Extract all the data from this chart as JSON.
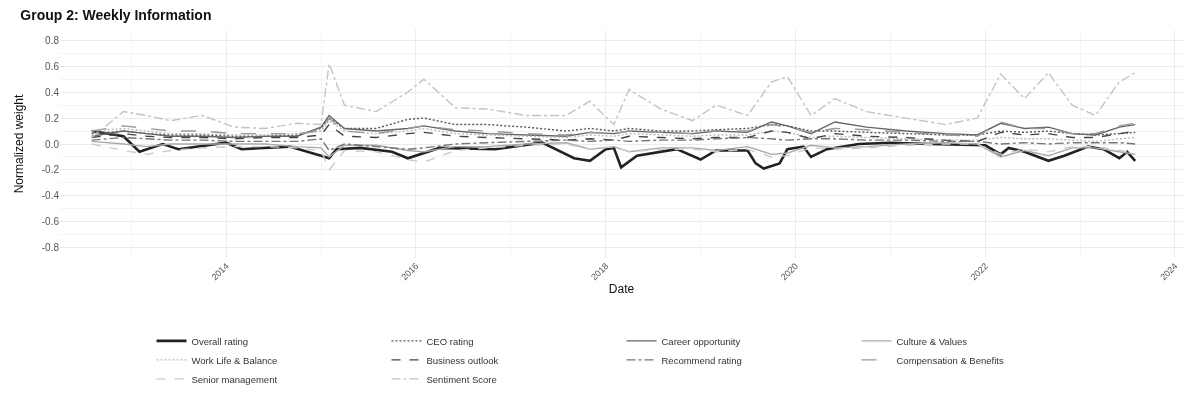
{
  "chart_data": {
    "type": "line",
    "title": "Group 2: Weekly Information",
    "xlabel": "Date",
    "ylabel": "Normalized weight",
    "x": [
      "2012-08",
      "2012-12",
      "2013-03",
      "2013-06",
      "2013-10",
      "2014-02",
      "2014-06",
      "2014-10",
      "2015-01",
      "2015-02",
      "2015-04",
      "2015-08",
      "2015-12",
      "2016-02",
      "2016-06",
      "2016-10",
      "2017-03",
      "2017-08",
      "2017-11",
      "2018-02",
      "2018-04",
      "2018-08",
      "2018-12",
      "2019-03",
      "2019-07",
      "2019-10",
      "2019-12",
      "2020-03",
      "2020-06",
      "2020-10",
      "2021-03",
      "2021-08",
      "2021-12",
      "2022-03",
      "2022-06",
      "2022-09",
      "2022-12",
      "2023-03",
      "2023-06",
      "2023-08"
    ],
    "series": [
      {
        "name": "Overall rating",
        "color": "#222222",
        "line_style": "solid",
        "x": [
          "2012-08",
          "2012-12",
          "2013-02",
          "2013-05",
          "2013-07",
          "2014-01",
          "2014-03",
          "2014-09",
          "2015-01",
          "2015-02",
          "2015-03",
          "2015-06",
          "2015-10",
          "2015-12",
          "2016-04",
          "2016-11",
          "2017-05",
          "2017-09",
          "2017-11",
          "2018-01",
          "2018-02",
          "2018-03",
          "2018-05",
          "2018-10",
          "2019-01",
          "2019-03",
          "2019-07",
          "2019-08",
          "2019-09",
          "2019-11",
          "2019-12",
          "2020-02",
          "2020-03",
          "2020-05",
          "2020-09",
          "2021-01",
          "2021-06",
          "2022-01",
          "2022-03",
          "2022-04",
          "2022-06",
          "2022-09",
          "2022-11",
          "2023-02",
          "2023-04",
          "2023-06",
          "2023-07",
          "2023-08"
        ],
        "values": [
          0.1,
          0.06,
          -0.06,
          0.0,
          -0.04,
          0.01,
          -0.04,
          -0.02,
          -0.09,
          -0.11,
          -0.04,
          -0.03,
          -0.06,
          -0.11,
          -0.03,
          -0.04,
          0.01,
          -0.11,
          -0.13,
          -0.04,
          -0.03,
          -0.18,
          -0.09,
          -0.04,
          -0.12,
          -0.05,
          -0.05,
          -0.15,
          -0.19,
          -0.15,
          -0.04,
          -0.02,
          -0.1,
          -0.04,
          0.0,
          0.01,
          0.0,
          -0.01,
          -0.08,
          -0.03,
          -0.06,
          -0.13,
          -0.09,
          -0.02,
          -0.04,
          -0.11,
          -0.06,
          -0.13
        ]
      },
      {
        "name": "CEO rating",
        "color": "#555555",
        "line_style": "dotted",
        "values": [
          0.08,
          0.1,
          0.08,
          0.07,
          0.07,
          0.06,
          0.06,
          0.07,
          0.12,
          0.2,
          0.12,
          0.12,
          0.19,
          0.2,
          0.15,
          0.15,
          0.13,
          0.1,
          0.12,
          0.1,
          0.12,
          0.1,
          0.1,
          0.11,
          0.12,
          0.15,
          0.14,
          0.1,
          0.1,
          0.09,
          0.08,
          0.07,
          0.07,
          0.1,
          0.09,
          0.1,
          0.08,
          0.07,
          0.08,
          0.09
        ]
      },
      {
        "name": "Career opportunity",
        "color": "#666666",
        "line_style": "solid",
        "values": [
          0.06,
          0.1,
          0.08,
          0.06,
          0.06,
          0.05,
          0.06,
          0.06,
          0.13,
          0.22,
          0.12,
          0.1,
          0.12,
          0.14,
          0.1,
          0.08,
          0.07,
          0.06,
          0.09,
          0.08,
          0.1,
          0.09,
          0.08,
          0.1,
          0.09,
          0.17,
          0.14,
          0.08,
          0.17,
          0.13,
          0.1,
          0.08,
          0.07,
          0.16,
          0.12,
          0.13,
          0.08,
          0.07,
          0.13,
          0.15
        ]
      },
      {
        "name": "Culture & Values",
        "color": "#aaaaaa",
        "line_style": "solid",
        "values": [
          0.02,
          0.0,
          -0.02,
          0.0,
          0.0,
          0.0,
          0.0,
          -0.02,
          -0.03,
          -0.1,
          -0.01,
          -0.01,
          -0.05,
          -0.06,
          -0.02,
          -0.02,
          0.0,
          0.01,
          -0.04,
          -0.02,
          -0.06,
          -0.03,
          -0.03,
          -0.05,
          -0.02,
          -0.08,
          -0.07,
          -0.01,
          -0.03,
          -0.02,
          0.0,
          0.01,
          0.0,
          -0.1,
          -0.05,
          -0.09,
          -0.03,
          -0.03,
          -0.06,
          -0.08
        ]
      },
      {
        "name": "Work Life & Balance",
        "color": "#bbbbbb",
        "line_style": "dotted",
        "values": [
          0.1,
          0.12,
          0.1,
          0.08,
          0.08,
          0.07,
          0.07,
          0.08,
          0.1,
          0.18,
          0.1,
          0.08,
          0.1,
          0.12,
          0.08,
          0.07,
          0.06,
          0.05,
          0.07,
          0.06,
          0.08,
          0.07,
          0.06,
          0.07,
          0.07,
          0.1,
          0.09,
          0.05,
          0.06,
          0.05,
          0.04,
          0.03,
          0.03,
          0.05,
          0.04,
          0.04,
          0.03,
          0.02,
          0.04,
          0.05
        ]
      },
      {
        "name": "Business outlook",
        "color": "#444444",
        "line_style": "dashed",
        "values": [
          0.05,
          0.08,
          0.06,
          0.05,
          0.05,
          0.04,
          0.05,
          0.05,
          0.07,
          0.15,
          0.06,
          0.05,
          0.08,
          0.09,
          0.06,
          0.05,
          0.04,
          0.03,
          0.04,
          0.03,
          0.06,
          0.05,
          0.04,
          0.05,
          0.05,
          0.1,
          0.09,
          0.04,
          0.08,
          0.06,
          0.05,
          0.03,
          0.02,
          0.09,
          0.07,
          0.08,
          0.05,
          0.05,
          0.08,
          0.1
        ]
      },
      {
        "name": "Recommend rating",
        "color": "#777777",
        "line_style": "dashdot",
        "values": [
          0.03,
          0.05,
          0.04,
          0.03,
          0.03,
          0.02,
          0.02,
          0.02,
          0.04,
          -0.05,
          0.0,
          -0.02,
          -0.04,
          -0.03,
          0.0,
          0.01,
          0.02,
          0.03,
          0.02,
          0.03,
          0.02,
          0.03,
          0.03,
          0.04,
          0.05,
          0.04,
          0.03,
          0.04,
          0.04,
          0.03,
          0.03,
          0.02,
          0.02,
          0.0,
          0.01,
          0.0,
          0.01,
          0.01,
          0.01,
          0.0
        ]
      },
      {
        "name": "Compensation & Benefits",
        "color": "#999999",
        "line_style": "longdash",
        "values": [
          0.1,
          0.14,
          0.12,
          0.1,
          0.1,
          0.08,
          0.08,
          0.08,
          0.1,
          0.2,
          0.1,
          0.08,
          0.12,
          0.14,
          0.11,
          0.1,
          0.08,
          0.07,
          0.09,
          0.08,
          0.1,
          0.09,
          0.08,
          0.1,
          0.1,
          0.15,
          0.13,
          0.09,
          0.12,
          0.11,
          0.09,
          0.07,
          0.06,
          0.17,
          0.12,
          0.12,
          0.08,
          0.08,
          0.14,
          0.16
        ]
      },
      {
        "name": "Senior management",
        "color": "#cccccc",
        "line_style": "dashed",
        "values": [
          0.0,
          -0.05,
          -0.08,
          -0.05,
          -0.03,
          -0.02,
          -0.02,
          -0.03,
          -0.05,
          -0.2,
          -0.05,
          -0.06,
          -0.12,
          -0.14,
          -0.05,
          -0.03,
          -0.01,
          0.0,
          -0.04,
          -0.02,
          -0.06,
          -0.04,
          -0.04,
          -0.06,
          -0.04,
          -0.1,
          -0.09,
          -0.03,
          -0.04,
          -0.03,
          -0.01,
          0.0,
          0.0,
          -0.08,
          -0.04,
          -0.06,
          -0.02,
          -0.02,
          -0.05,
          -0.07
        ]
      },
      {
        "name": "Sentiment Score",
        "color": "#c4c4c4",
        "line_style": "dashdot",
        "values": [
          0.05,
          0.25,
          0.22,
          0.18,
          0.22,
          0.13,
          0.12,
          0.16,
          0.15,
          0.62,
          0.3,
          0.25,
          0.4,
          0.5,
          0.28,
          0.27,
          0.22,
          0.22,
          0.33,
          0.15,
          0.42,
          0.27,
          0.18,
          0.3,
          0.22,
          0.48,
          0.52,
          0.22,
          0.35,
          0.25,
          0.2,
          0.15,
          0.2,
          0.54,
          0.35,
          0.55,
          0.3,
          0.22,
          0.48,
          0.55
        ]
      }
    ],
    "xlim": [
      "2012-04",
      "2024-02"
    ],
    "xticks": [
      "2014",
      "2016",
      "2018",
      "2020",
      "2022",
      "2024"
    ],
    "ylim": [
      -0.88,
      0.88
    ],
    "yticks": [
      -0.8,
      -0.6,
      -0.4,
      -0.2,
      {
        "value": 0,
        "label": "0.0"
      },
      0.2,
      0.4,
      0.6,
      0.8
    ],
    "grid": true,
    "legend": "bottom",
    "marker": "none"
  }
}
